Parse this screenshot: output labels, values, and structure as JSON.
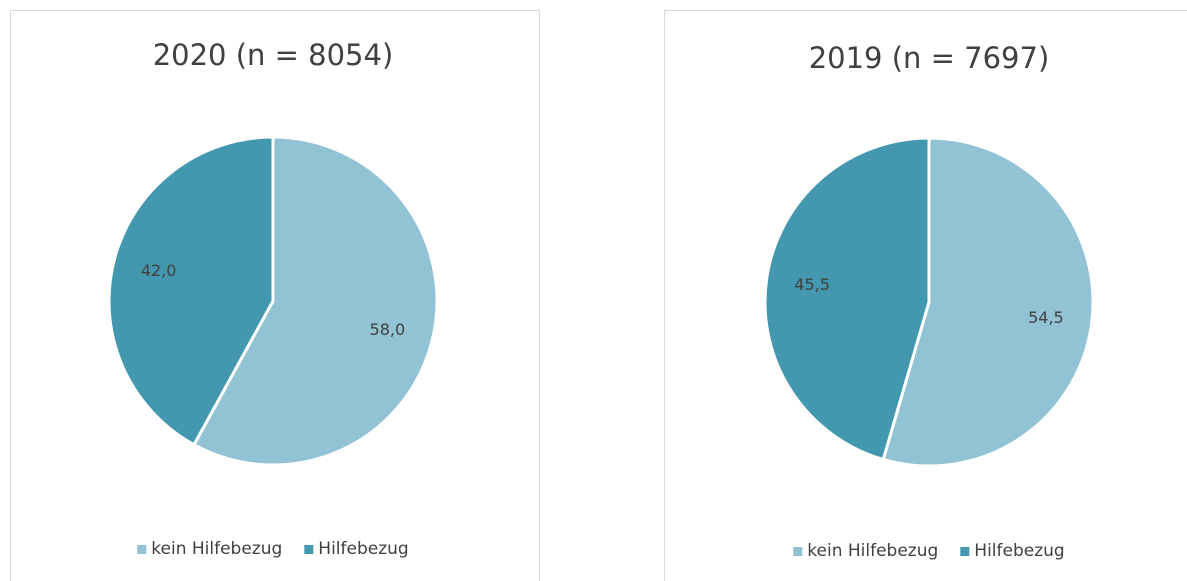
{
  "chart_data": [
    {
      "type": "pie",
      "title": "2020 (n = 8054)",
      "categories": [
        "kein Hilfebezug",
        "Hilfebezug"
      ],
      "values": [
        58.0,
        42.0
      ],
      "value_labels": [
        "58,0",
        "42,0"
      ],
      "colors": [
        "#92c3d4",
        "#4397ae"
      ]
    },
    {
      "type": "pie",
      "title": "2019 (n = 7697)",
      "categories": [
        "kein Hilfebezug",
        "Hilfebezug"
      ],
      "values": [
        54.5,
        45.5
      ],
      "value_labels": [
        "54,5",
        "45,5"
      ],
      "colors": [
        "#92c3d4",
        "#4397ae"
      ]
    }
  ]
}
